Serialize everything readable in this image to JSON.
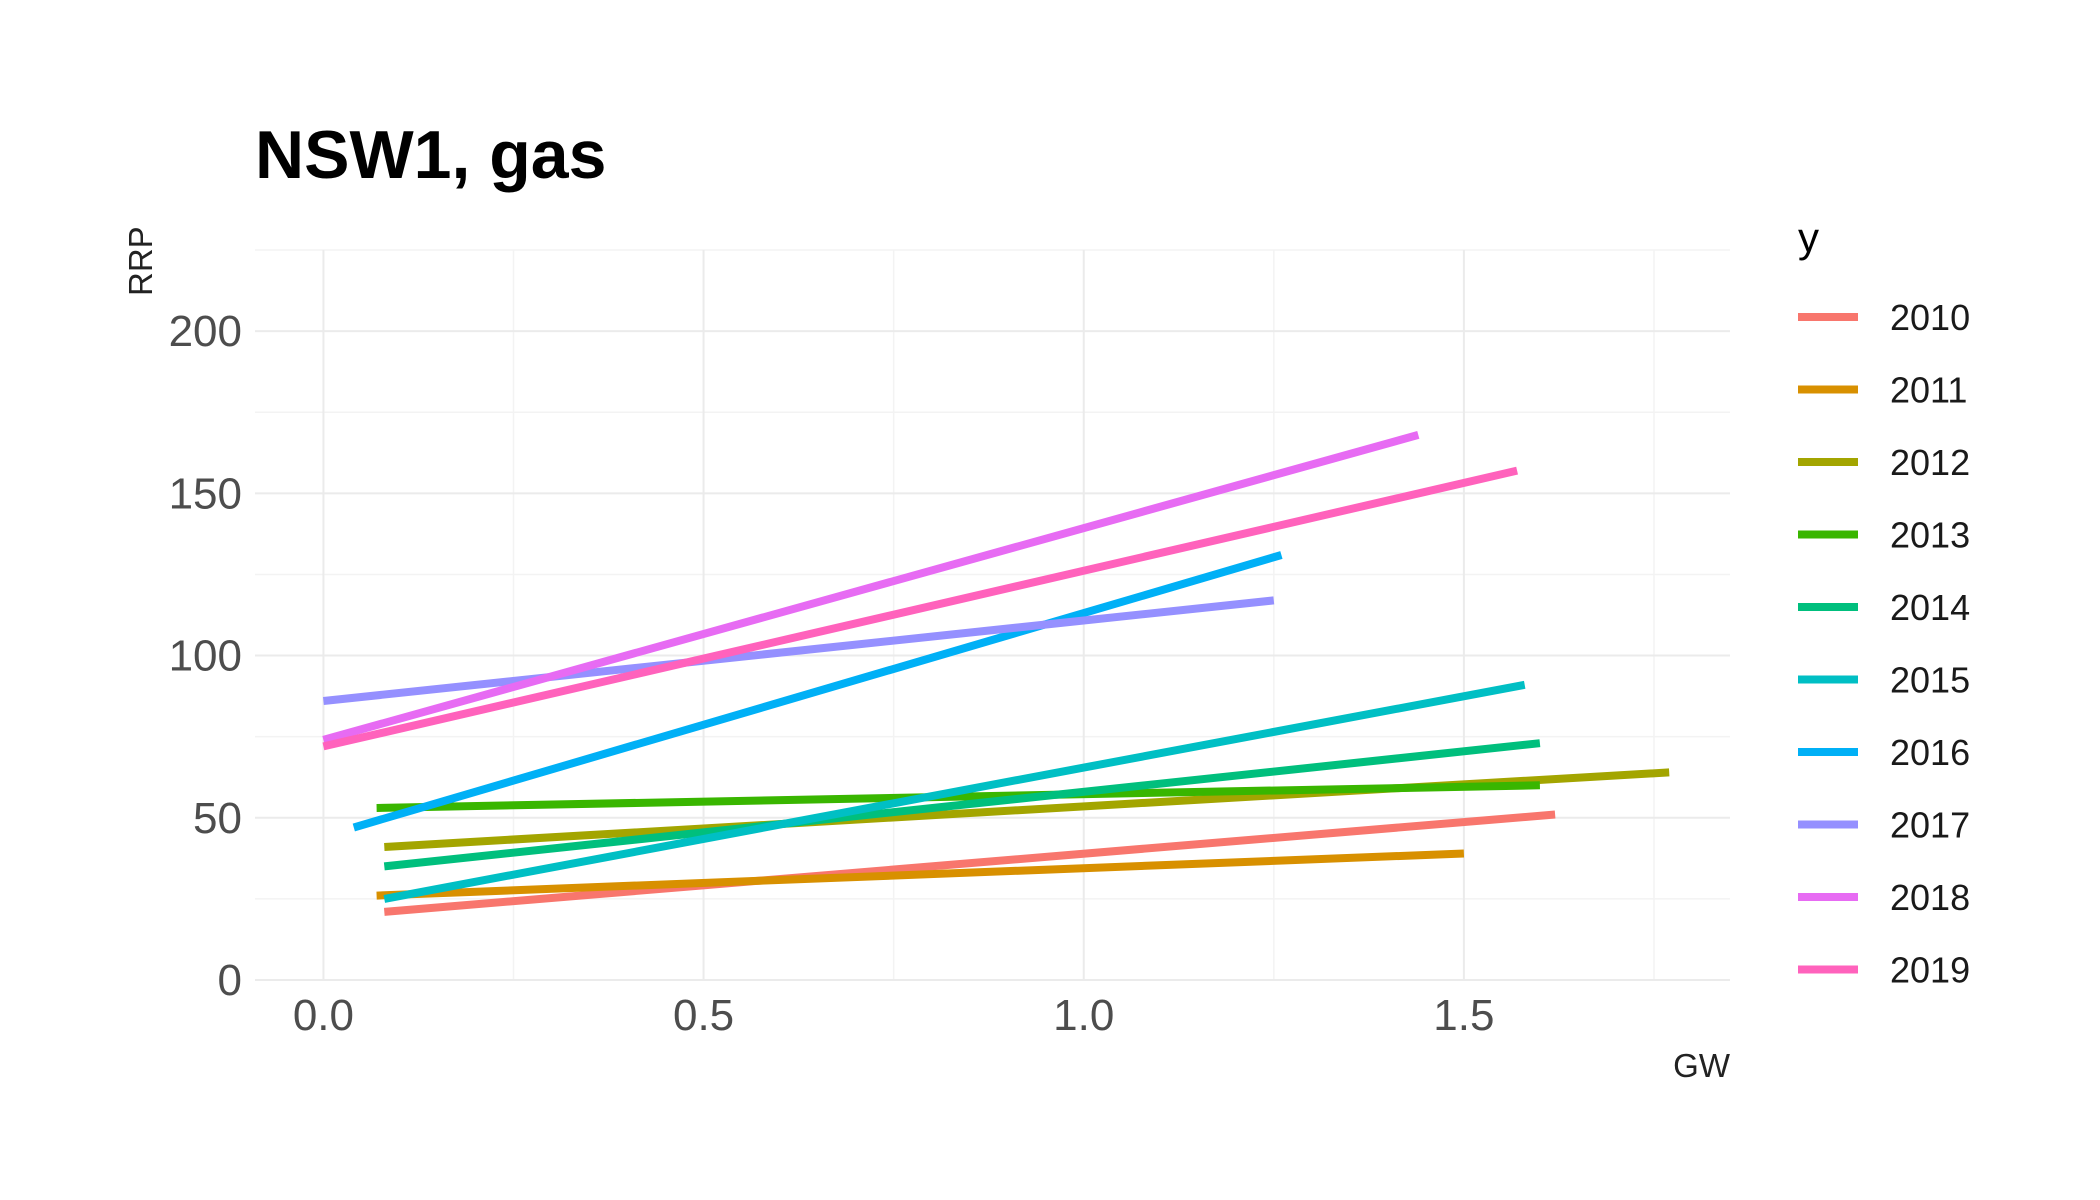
{
  "chart_data": {
    "type": "line",
    "title": "NSW1, gas",
    "xlabel": "GW",
    "ylabel": "RRP",
    "xlim": [
      -0.09,
      1.85
    ],
    "ylim": [
      0,
      225
    ],
    "x_ticks": [
      0.0,
      0.5,
      1.0,
      1.5
    ],
    "x_tick_labels": [
      "0.0",
      "0.5",
      "1.0",
      "1.5"
    ],
    "y_ticks": [
      0,
      50,
      100,
      150,
      200
    ],
    "y_tick_labels": [
      "0",
      "50",
      "100",
      "150",
      "200"
    ],
    "grid": true,
    "legend": {
      "title": "y",
      "position": "right"
    },
    "series": [
      {
        "name": "2010",
        "color": "#F8766D",
        "x": [
          0.08,
          1.62
        ],
        "y": [
          21,
          51
        ]
      },
      {
        "name": "2011",
        "color": "#D89000",
        "x": [
          0.07,
          1.5
        ],
        "y": [
          26,
          39
        ]
      },
      {
        "name": "2012",
        "color": "#A3A500",
        "x": [
          0.08,
          1.77
        ],
        "y": [
          41,
          64
        ]
      },
      {
        "name": "2013",
        "color": "#39B600",
        "x": [
          0.07,
          1.6
        ],
        "y": [
          53,
          60
        ]
      },
      {
        "name": "2014",
        "color": "#00BF7D",
        "x": [
          0.08,
          1.6
        ],
        "y": [
          35,
          73
        ]
      },
      {
        "name": "2015",
        "color": "#00BFC4",
        "x": [
          0.08,
          1.58
        ],
        "y": [
          25,
          91
        ]
      },
      {
        "name": "2016",
        "color": "#00B0F6",
        "x": [
          0.04,
          1.26
        ],
        "y": [
          47,
          131
        ]
      },
      {
        "name": "2017",
        "color": "#9590FF",
        "x": [
          0.0,
          1.25
        ],
        "y": [
          86,
          117
        ]
      },
      {
        "name": "2018",
        "color": "#E76BF3",
        "x": [
          0.0,
          1.44
        ],
        "y": [
          74,
          168
        ]
      },
      {
        "name": "2019",
        "color": "#FF62BC",
        "x": [
          0.0,
          1.57
        ],
        "y": [
          72,
          157
        ]
      }
    ]
  }
}
